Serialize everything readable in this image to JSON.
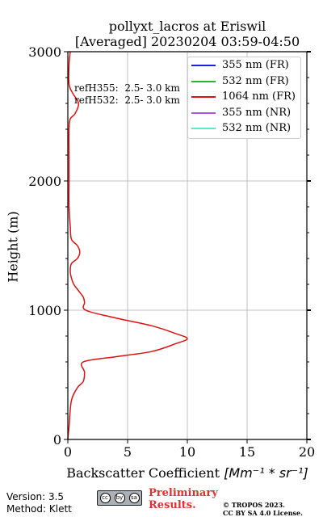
{
  "chart_data": {
    "type": "line",
    "title": "pollyxt_lacros at Eriswil",
    "subtitle": "[Averaged] 20230204 03:59-04:50",
    "xlabel_text": "Backscatter Coefficient ",
    "xlabel_math": "[Mm⁻¹ * sr⁻¹]",
    "ylabel": "Height (m)",
    "xlim": [
      0,
      20
    ],
    "ylim": [
      0,
      3000
    ],
    "xticks": [
      "0",
      "5",
      "10",
      "15",
      "20"
    ],
    "yticks": [
      "0",
      "1000",
      "2000",
      "3000"
    ],
    "grid": true,
    "legend_placement": "top-right",
    "series": [
      {
        "name": "355 nm (FR)",
        "color": "#1f1fdd",
        "x": [],
        "y": []
      },
      {
        "name": "532 nm (FR)",
        "color": "#22bb22",
        "x": [],
        "y": []
      },
      {
        "name": "1064 nm (FR)",
        "color": "#dd1111",
        "x": [
          0,
          0.1,
          0.3,
          0.8,
          1.3,
          1.4,
          1.3,
          4,
          7,
          9,
          10,
          9,
          7,
          4,
          1.5,
          1.4,
          1.3,
          0.9,
          0.5,
          0.3,
          0.2,
          0.3,
          0.8,
          1.0,
          0.8,
          0.3,
          0.2,
          0.1,
          0.1,
          0.1,
          0.1,
          0.2,
          0.6,
          0.9,
          0.4,
          0.1,
          0.1,
          0.2
        ],
        "y": [
          0,
          100,
          300,
          400,
          450,
          520,
          600,
          640,
          680,
          740,
          780,
          820,
          880,
          940,
          1000,
          1060,
          1100,
          1150,
          1200,
          1250,
          1300,
          1360,
          1400,
          1450,
          1500,
          1550,
          1650,
          1800,
          2000,
          2200,
          2400,
          2480,
          2520,
          2600,
          2680,
          2750,
          2900,
          3000
        ]
      },
      {
        "name": "355 nm (NR)",
        "color": "#aa55dd",
        "x": [],
        "y": []
      },
      {
        "name": "532 nm (NR)",
        "color": "#55eecc",
        "x": [],
        "y": []
      }
    ],
    "annotations": [
      "refH355:  2.5- 3.0 km",
      "refH532:  2.5- 3.0 km"
    ]
  },
  "footer": {
    "version": "Version: 3.5",
    "method": "Method: Klett",
    "license_badge": [
      "cc",
      "by",
      "sa"
    ],
    "preliminary": [
      "Preliminary",
      "Results."
    ],
    "copyright": [
      "© TROPOS 2023.",
      "CC BY SA 4.0 License."
    ]
  }
}
